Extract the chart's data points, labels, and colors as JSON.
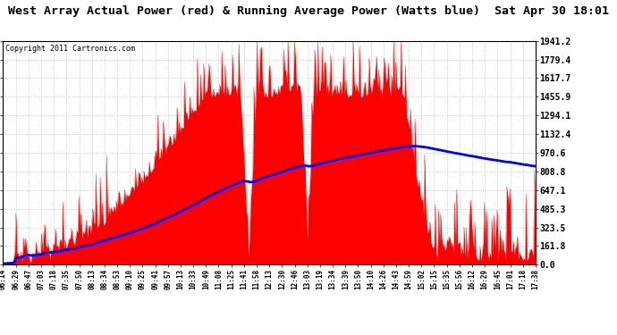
{
  "title": "West Array Actual Power (red) & Running Average Power (Watts blue)  Sat Apr 30 18:01",
  "subtitle": "Copyright 2011 Cartronics.com",
  "yticks": [
    0.0,
    161.8,
    323.5,
    485.3,
    647.1,
    808.8,
    970.6,
    1132.4,
    1294.1,
    1455.9,
    1617.7,
    1779.4,
    1941.2
  ],
  "ymax": 1941.2,
  "ymin": 0.0,
  "background_color": "#ffffff",
  "grid_color": "#bbbbbb",
  "bar_color": "#ff0000",
  "line_color": "#0000ff",
  "title_fontsize": 9.5,
  "subtitle_fontsize": 6,
  "xtick_labels": [
    "06:14",
    "06:29",
    "06:47",
    "07:03",
    "07:18",
    "07:35",
    "07:50",
    "08:13",
    "08:34",
    "08:53",
    "09:10",
    "09:25",
    "09:41",
    "09:57",
    "10:13",
    "10:33",
    "10:49",
    "11:08",
    "11:25",
    "11:41",
    "11:58",
    "12:13",
    "12:30",
    "12:46",
    "13:03",
    "13:19",
    "13:34",
    "13:39",
    "13:50",
    "14:10",
    "14:26",
    "14:43",
    "14:59",
    "15:02",
    "15:15",
    "15:35",
    "15:56",
    "16:12",
    "16:29",
    "16:45",
    "17:01",
    "17:18",
    "17:38"
  ]
}
